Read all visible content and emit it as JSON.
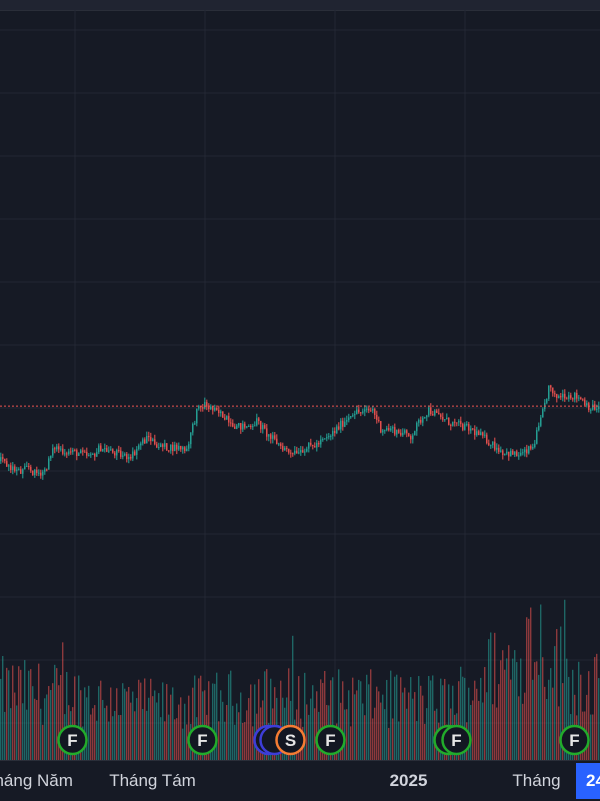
{
  "chart_data": {
    "type": "candlestick",
    "grid": true,
    "last_price_line": true,
    "colors": {
      "background": "#161a25",
      "up": "#26a69a",
      "down": "#ef5350",
      "grid": "#232734",
      "price_line": "#ef5350",
      "financial_marker": "#22ab2b",
      "split_marker": "#f57c33",
      "other_marker": "#3d3dd8"
    },
    "time_axis": {
      "ticks": [
        {
          "label": "Tháng Năm",
          "kind": "month",
          "index": 14
        },
        {
          "label": "Tháng Tám",
          "kind": "month",
          "index": 76
        },
        {
          "label": "2025",
          "kind": "year",
          "index": 204
        },
        {
          "label": "Tháng",
          "kind": "month",
          "index": 268
        }
      ],
      "cursor_label": "24"
    },
    "price_path": [
      [
        0,
        0.555
      ],
      [
        4,
        0.545
      ],
      [
        10,
        0.53
      ],
      [
        14,
        0.542
      ],
      [
        17,
        0.528
      ],
      [
        22,
        0.535
      ],
      [
        27,
        0.585
      ],
      [
        33,
        0.575
      ],
      [
        38,
        0.573
      ],
      [
        45,
        0.563
      ],
      [
        50,
        0.585
      ],
      [
        55,
        0.575
      ],
      [
        62,
        0.565
      ],
      [
        66,
        0.57
      ],
      [
        70,
        0.593
      ],
      [
        74,
        0.605
      ],
      [
        80,
        0.585
      ],
      [
        86,
        0.585
      ],
      [
        93,
        0.582
      ],
      [
        98,
        0.66
      ],
      [
        102,
        0.675
      ],
      [
        108,
        0.658
      ],
      [
        113,
        0.65
      ],
      [
        118,
        0.628
      ],
      [
        123,
        0.628
      ],
      [
        128,
        0.64
      ],
      [
        134,
        0.608
      ],
      [
        138,
        0.595
      ],
      [
        144,
        0.575
      ],
      [
        150,
        0.58
      ],
      [
        158,
        0.59
      ],
      [
        164,
        0.605
      ],
      [
        170,
        0.632
      ],
      [
        176,
        0.66
      ],
      [
        181,
        0.658
      ],
      [
        186,
        0.665
      ],
      [
        190,
        0.625
      ],
      [
        196,
        0.622
      ],
      [
        205,
        0.608
      ],
      [
        211,
        0.65
      ],
      [
        214,
        0.665
      ],
      [
        219,
        0.65
      ],
      [
        224,
        0.638
      ],
      [
        230,
        0.63
      ],
      [
        236,
        0.62
      ],
      [
        243,
        0.6
      ],
      [
        251,
        0.575
      ],
      [
        258,
        0.568
      ],
      [
        262,
        0.572
      ],
      [
        266,
        0.585
      ],
      [
        270,
        0.64
      ],
      [
        274,
        0.712
      ],
      [
        277,
        0.69
      ],
      [
        281,
        0.697
      ],
      [
        285,
        0.695
      ],
      [
        290,
        0.69
      ],
      [
        295,
        0.668
      ]
    ],
    "volume_profile": [
      [
        0,
        0.55
      ],
      [
        40,
        0.5
      ],
      [
        80,
        0.42
      ],
      [
        130,
        0.5
      ],
      [
        180,
        0.48
      ],
      [
        225,
        0.46
      ],
      [
        245,
        0.7
      ],
      [
        258,
        0.75
      ],
      [
        266,
        1.0
      ],
      [
        275,
        0.8
      ],
      [
        290,
        0.6
      ],
      [
        300,
        0.6
      ]
    ],
    "events": [
      {
        "letter": "F",
        "kind": "financial",
        "index": 36
      },
      {
        "letter": "F",
        "kind": "financial",
        "index": 101
      },
      {
        "letter": "",
        "kind": "other",
        "index": 134
      },
      {
        "letter": "",
        "kind": "other",
        "index": 137
      },
      {
        "letter": "S",
        "kind": "split",
        "index": 145
      },
      {
        "letter": "F",
        "kind": "financial",
        "index": 165
      },
      {
        "letter": "",
        "kind": "financial",
        "index": 224
      },
      {
        "letter": "F",
        "kind": "financial",
        "index": 228
      },
      {
        "letter": "F",
        "kind": "financial",
        "index": 287
      }
    ]
  }
}
